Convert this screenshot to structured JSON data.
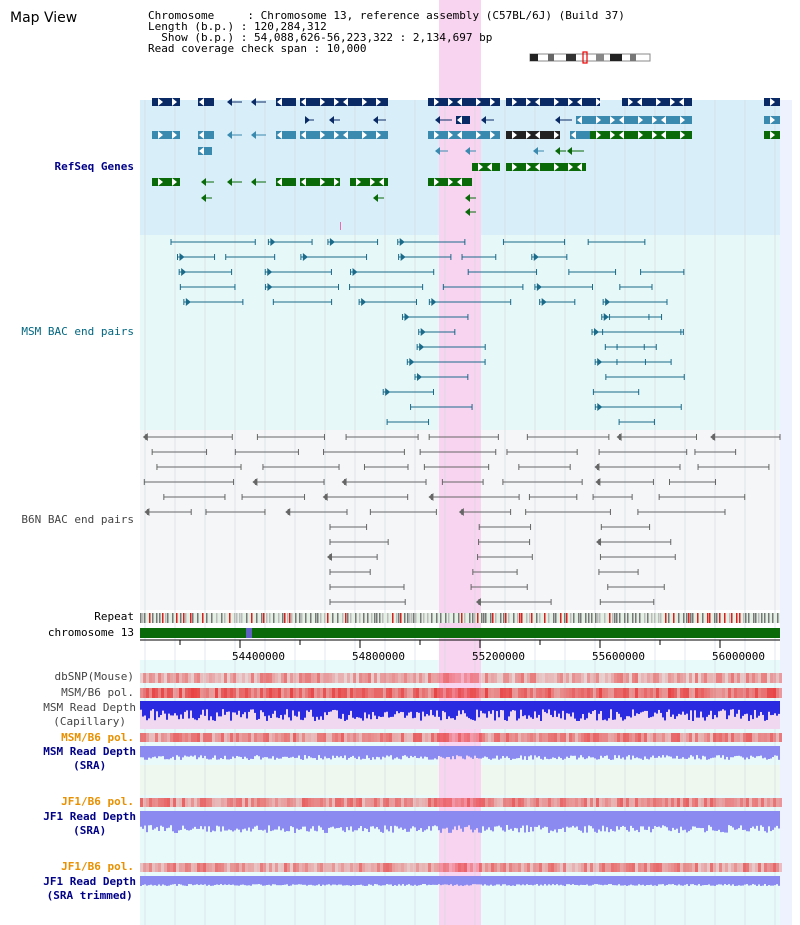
{
  "header": {
    "title": "Map View",
    "info_lines": [
      "Chromosome     : Chromosome 13, reference assembly (C57BL/6J) (Build 37)",
      "Length (b.p.) : 120,284,312",
      "  Show (b.p.) : 54,088,626-56,223,322 : 2,134,697 bp",
      "Read coverage check span : 10,000"
    ]
  },
  "tracks": {
    "refseq": "RefSeq Genes",
    "msm_bac": "MSM BAC end pairs",
    "b6n_bac": "B6N BAC end pairs",
    "repeat": "Repeat",
    "chromosome": "chromosome 13",
    "dbsnp": "dbSNP(Mouse)",
    "msm_b6_pol": "MSM/B6 pol.",
    "msm_read_cap_1": "MSM Read Depth",
    "msm_read_cap_2": "(Capillary)",
    "msm_b6_pol_2": "MSM/B6 pol.",
    "msm_read_sra_1": "MSM Read Depth",
    "msm_read_sra_2": "(SRA)",
    "jf1_b6_pol": "JF1/B6 pol.",
    "jf1_read_sra_1": "JF1 Read Depth",
    "jf1_read_sra_2": "(SRA)",
    "jf1_b6_pol_2": "JF1/B6 pol.",
    "jf1_read_trim_1": "JF1 Read Depth",
    "jf1_read_trim_2": "(SRA trimmed)"
  },
  "axis": {
    "ticks": [
      "54400000",
      "54800000",
      "55200000",
      "55600000",
      "56000000"
    ]
  },
  "colors": {
    "refseq_bg": "#d8eef8",
    "msm_bg": "#e6f8f8",
    "b6n_bg": "#f4f6f8",
    "highlight": "#f8d4f0",
    "gene_dark": "#0a2a66",
    "gene_mid": "#3a8ab0",
    "gene_green": "#0a6a0a",
    "msm_line": "#1a6a8a",
    "b6n_line": "#666666",
    "chrom": "#0a6a0a",
    "pol_red": "#e83a3a",
    "depth_blue": "#2a2ae0",
    "depth_light": "#8a8af0"
  }
}
